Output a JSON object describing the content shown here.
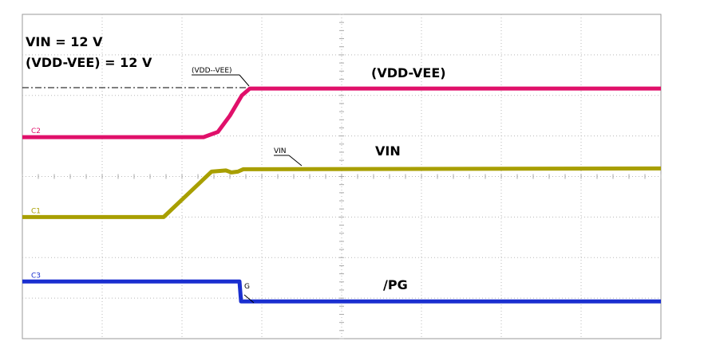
{
  "chart_data": {
    "type": "line",
    "annotations": [
      "VIN = 12 V",
      "(VDD-VEE) = 12 V",
      "(VDD-VEE)",
      "VIN",
      "/PG"
    ],
    "markers": [
      "(VDD--VEE)",
      "VIN",
      "G"
    ],
    "xlim": [
      0,
      8
    ],
    "ylim": [
      0,
      8
    ],
    "grid": true,
    "series": [
      {
        "name": "C2",
        "color": "#e0106a",
        "x": [
          0,
          2.27,
          2.45,
          2.6,
          2.75,
          2.85,
          8
        ],
        "values": [
          4.97,
          4.97,
          5.1,
          5.5,
          6.0,
          6.17,
          6.17
        ]
      },
      {
        "name": "C1",
        "color": "#a89f00",
        "x": [
          0,
          1.77,
          2.37,
          2.55,
          2.62,
          2.7,
          2.77,
          8
        ],
        "values": [
          3.0,
          3.0,
          4.12,
          4.15,
          4.1,
          4.12,
          4.18,
          4.2
        ]
      },
      {
        "name": "C3",
        "color": "#1a2fd0",
        "x": [
          0,
          2.72,
          2.74,
          8
        ],
        "values": [
          1.41,
          1.41,
          0.92,
          0.92
        ]
      }
    ]
  }
}
